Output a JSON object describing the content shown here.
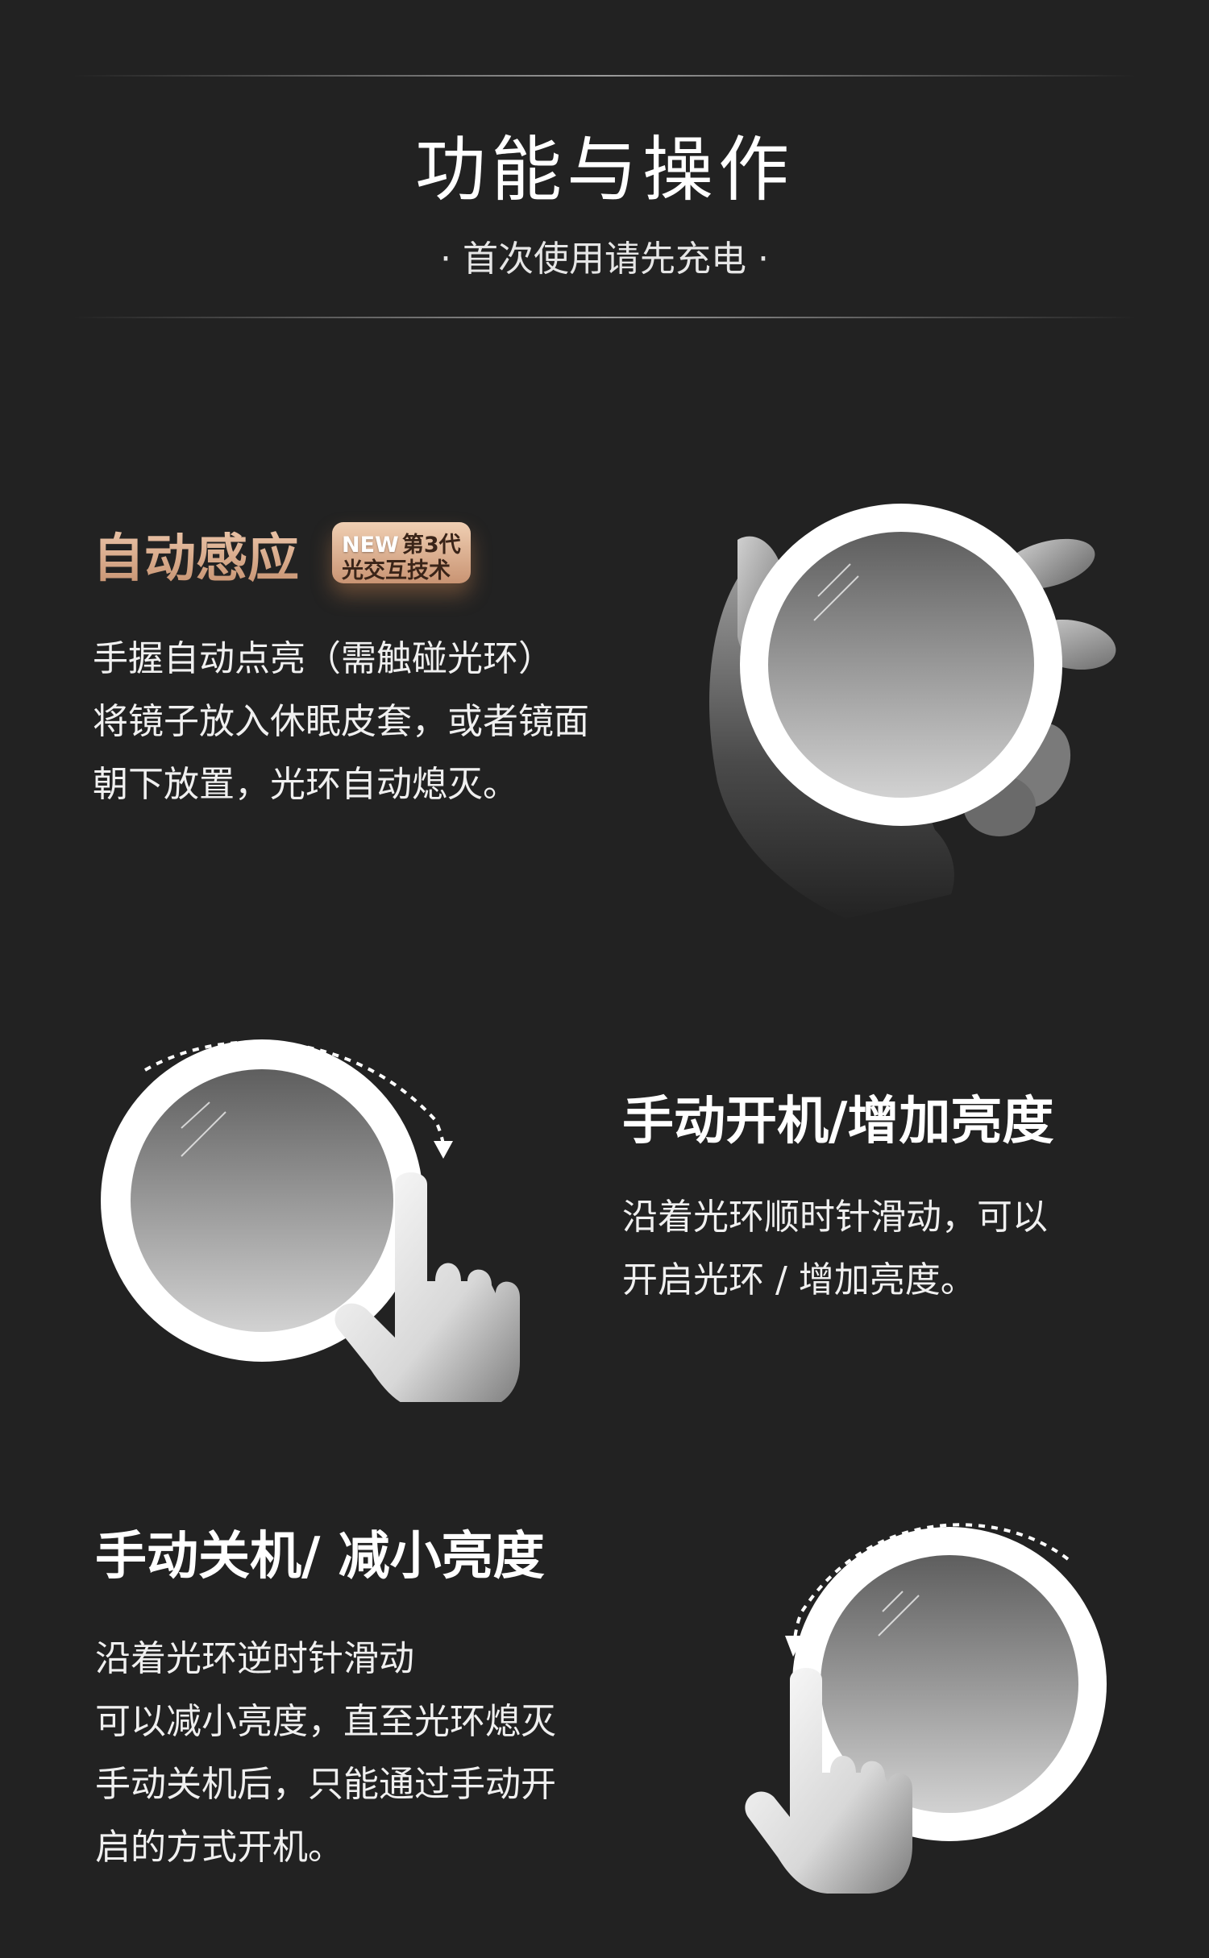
{
  "header": {
    "title": "功能与操作",
    "subtitle": "· 首次使用请先充电 ·"
  },
  "section_auto": {
    "title": "自动感应",
    "badge": {
      "new": "NEW",
      "gen": "第3代",
      "tech": "光交互技术"
    },
    "lines": [
      "手握自动点亮（需触碰光环）",
      "将镜子放入休眠皮套，或者镜面",
      "朝下放置，光环自动熄灭。"
    ],
    "illustration_icon": "hand-holding-mirror-icon"
  },
  "section_on": {
    "title": "手动开机/增加亮度",
    "lines": [
      "沿着光环顺时针滑动，可以",
      "开启光环 / 增加亮度。"
    ],
    "illustration_icon": "clockwise-swipe-icon"
  },
  "section_off": {
    "title": "手动关机/ 减小亮度",
    "lines": [
      "沿着光环逆时针滑动",
      "可以减小亮度，直至光环熄灭",
      "手动关机后，只能通过手动开",
      "启的方式开机。"
    ],
    "illustration_icon": "counterclockwise-swipe-icon"
  },
  "colors": {
    "background": "#222222",
    "gold_accent": "#d9a988",
    "text": "#ffffff"
  }
}
